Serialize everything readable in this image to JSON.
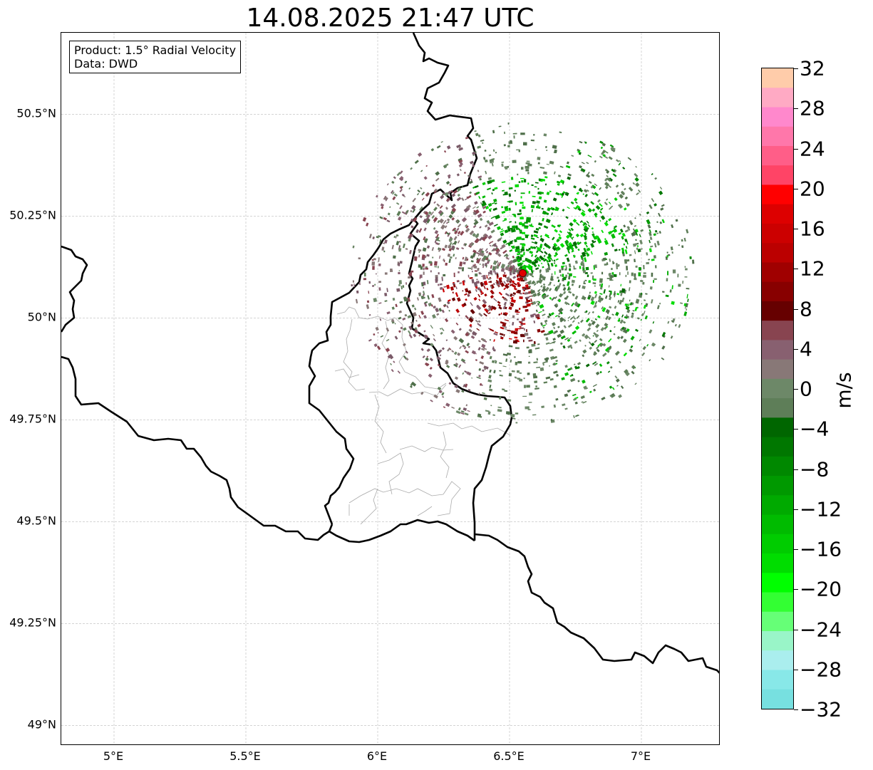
{
  "title": "14.08.2025 21:47 UTC",
  "info": {
    "product": "Product: 1.5° Radial Velocity",
    "source": "Data: DWD"
  },
  "map": {
    "extent": {
      "lon_min": 4.8,
      "lon_max": 7.3,
      "lat_min": 48.95,
      "lat_max": 50.7
    },
    "lat_ticks": [
      {
        "value": 50.5,
        "label": "50.5°N"
      },
      {
        "value": 50.25,
        "label": "50.25°N"
      },
      {
        "value": 50.0,
        "label": "50°N"
      },
      {
        "value": 49.75,
        "label": "49.75°N"
      },
      {
        "value": 49.5,
        "label": "49.5°N"
      },
      {
        "value": 49.25,
        "label": "49.25°N"
      },
      {
        "value": 49.0,
        "label": "49°N"
      }
    ],
    "lon_ticks": [
      {
        "value": 5.0,
        "label": "5°E"
      },
      {
        "value": 5.5,
        "label": "5.5°E"
      },
      {
        "value": 6.0,
        "label": "6°E"
      },
      {
        "value": 6.5,
        "label": "6.5°E"
      },
      {
        "value": 7.0,
        "label": "7°E"
      }
    ],
    "radar_site": {
      "lon": 6.55,
      "lat": 50.11,
      "color": "#e00000"
    },
    "gridlines": true,
    "border_color": "#000000",
    "district_color": "#aaaaaa"
  },
  "colorbar": {
    "unit": "m/s",
    "min": -32,
    "max": 32,
    "ticks": [
      "32",
      "28",
      "24",
      "20",
      "16",
      "12",
      "8",
      "4",
      "0",
      "−4",
      "−8",
      "−12",
      "−16",
      "−20",
      "−24",
      "−28",
      "−32"
    ],
    "colors_top_to_bottom": [
      "#ffccaa",
      "#ffaac4",
      "#ff88cc",
      "#ff77aa",
      "#ff5e88",
      "#ff4466",
      "#ff0000",
      "#dd0000",
      "#cc0000",
      "#bb0000",
      "#a00000",
      "#880000",
      "#660000",
      "#884450",
      "#886070",
      "#887877",
      "#6d8868",
      "#5e7e58",
      "#006600",
      "#007700",
      "#008800",
      "#009900",
      "#00aa00",
      "#00bb00",
      "#00cc00",
      "#00dd00",
      "#00ff00",
      "#33ff33",
      "#66ff77",
      "#99f5c8",
      "#aaeeee",
      "#88e8e8",
      "#77e0e0"
    ]
  }
}
